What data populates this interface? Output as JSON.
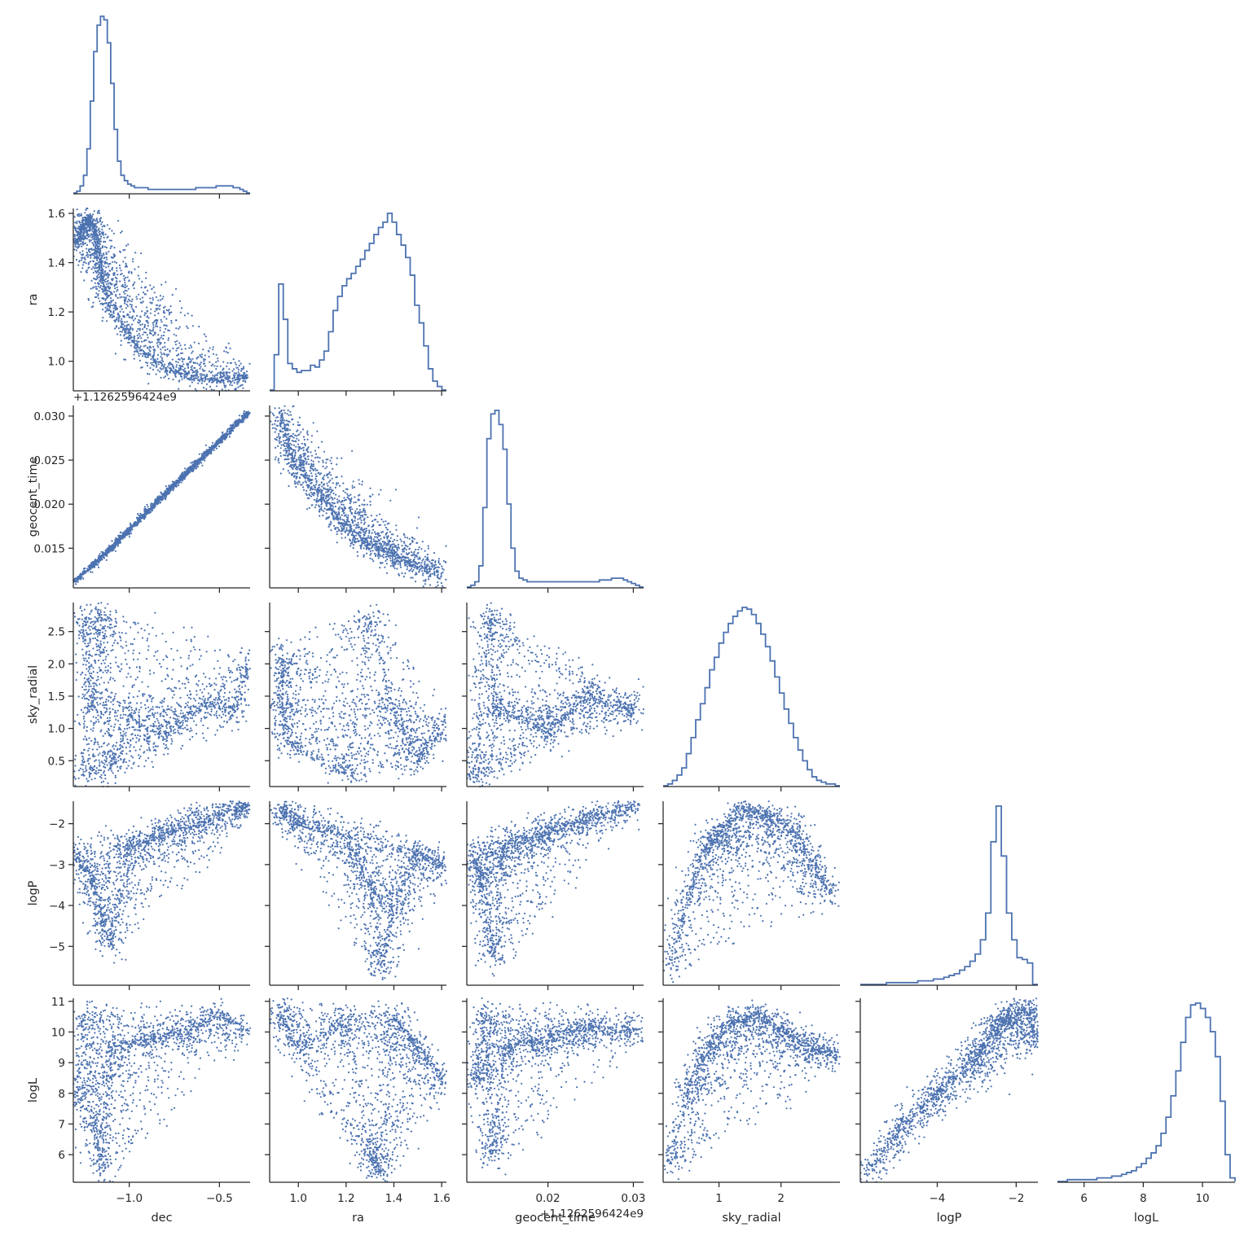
{
  "chart_data": {
    "type": "scatter",
    "kind": "corner pairplot (lower triangle scatter, diagonal step histograms)",
    "color": "#4c72b0",
    "variables": [
      "dec",
      "ra",
      "geocent_time",
      "sky_radial",
      "logP",
      "logL"
    ],
    "axes": {
      "dec": {
        "label": "dec",
        "range": [
          -1.31,
          -0.33
        ],
        "ticks": [
          -1.0,
          -0.5
        ],
        "tick_labels": [
          "−1.0",
          "−0.5"
        ]
      },
      "ra": {
        "label": "ra",
        "range": [
          0.88,
          1.62
        ],
        "ticks": [
          1.0,
          1.2,
          1.4,
          1.6
        ],
        "tick_labels": [
          "1.0",
          "1.2",
          "1.4",
          "1.6"
        ]
      },
      "geocent_time": {
        "label": "geocent_time",
        "offset_text": "+1.1262596424e9",
        "range": [
          0.0105,
          0.0312
        ],
        "ticks": [
          0.02,
          0.03
        ],
        "tick_labels": [
          "0.02",
          "0.03"
        ],
        "y_ticks": [
          0.015,
          0.02,
          0.025,
          0.03
        ],
        "y_tick_labels": [
          "0.015",
          "0.020",
          "0.025",
          "0.030"
        ]
      },
      "sky_radial": {
        "label": "sky_radial",
        "range": [
          0.1,
          2.95
        ],
        "ticks": [
          1,
          2
        ],
        "tick_labels": [
          "1",
          "2"
        ],
        "y_ticks": [
          0.5,
          1.0,
          1.5,
          2.0,
          2.5
        ],
        "y_tick_labels": [
          "0.5",
          "1.0",
          "1.5",
          "2.0",
          "2.5"
        ]
      },
      "logP": {
        "label": "logP",
        "range": [
          -5.95,
          -1.45
        ],
        "ticks": [
          -4,
          -2
        ],
        "tick_labels": [
          "−4",
          "−2"
        ],
        "y_ticks": [
          -5,
          -4,
          -3,
          -2
        ],
        "y_tick_labels": [
          "−5",
          "−4",
          "−3",
          "−2"
        ]
      },
      "logL": {
        "label": "logL",
        "range": [
          5.1,
          11.1
        ],
        "ticks": [
          6,
          8,
          10
        ],
        "tick_labels": [
          "6",
          "8",
          "10"
        ],
        "y_ticks": [
          6,
          7,
          8,
          9,
          10,
          11
        ],
        "y_tick_labels": [
          "6",
          "7",
          "8",
          "9",
          "10",
          "11"
        ]
      }
    },
    "ra_y_ticks": [
      1.0,
      1.2,
      1.4,
      1.6
    ],
    "ra_y_tick_labels": [
      "1.0",
      "1.2",
      "1.4",
      "1.6"
    ],
    "histograms": {
      "dec": {
        "edges": [
          -1.31,
          -0.33
        ],
        "counts": [
          0,
          1,
          4,
          10,
          25,
          52,
          80,
          95,
          100,
          98,
          85,
          62,
          36,
          18,
          10,
          7,
          5,
          4,
          3,
          3,
          3,
          3,
          2,
          2,
          2,
          2,
          2,
          2,
          2,
          2,
          2,
          2,
          2,
          2,
          2,
          2,
          3,
          3,
          3,
          3,
          3,
          3,
          4,
          4,
          4,
          4,
          4,
          3,
          3,
          2,
          1,
          0
        ]
      },
      "ra": {
        "edges": [
          0.88,
          1.62
        ],
        "counts": [
          0,
          20,
          60,
          40,
          15,
          12,
          10,
          11,
          11,
          14,
          13,
          17,
          22,
          33,
          45,
          53,
          59,
          63,
          66,
          70,
          74,
          79,
          83,
          88,
          92,
          95,
          100,
          95,
          88,
          82,
          75,
          65,
          48,
          38,
          25,
          12,
          5,
          2,
          0
        ]
      },
      "geocent_time": {
        "edges": [
          0.0105,
          0.0312
        ],
        "counts": [
          0,
          1,
          3,
          12,
          45,
          84,
          98,
          100,
          92,
          78,
          47,
          22,
          9,
          5,
          4,
          3,
          3,
          3,
          3,
          3,
          3,
          3,
          3,
          3,
          3,
          3,
          3,
          3,
          3,
          3,
          3,
          3,
          3,
          4,
          4,
          4,
          5,
          5,
          5,
          4,
          3,
          2,
          1,
          0
        ]
      },
      "sky_radial": {
        "edges": [
          0.1,
          2.95
        ],
        "counts": [
          0,
          1,
          3,
          6,
          10,
          18,
          27,
          37,
          46,
          55,
          65,
          72,
          80,
          86,
          91,
          95,
          98,
          100,
          99,
          96,
          91,
          85,
          78,
          70,
          61,
          52,
          43,
          35,
          27,
          20,
          14,
          9,
          5,
          3,
          2,
          1,
          1,
          0
        ]
      },
      "logP": {
        "edges": [
          -5.95,
          -1.45
        ],
        "counts": [
          0,
          0,
          0,
          0,
          0,
          1,
          1,
          1,
          1,
          1,
          1,
          2,
          2,
          2,
          3,
          3,
          4,
          5,
          6,
          8,
          10,
          13,
          17,
          25,
          40,
          80,
          100,
          72,
          40,
          25,
          15,
          14,
          12,
          0
        ]
      },
      "logL": {
        "edges": [
          5.1,
          11.1
        ],
        "counts": [
          0,
          0,
          1,
          1,
          1,
          1,
          1,
          1,
          2,
          2,
          2,
          3,
          3,
          4,
          5,
          6,
          8,
          10,
          13,
          16,
          20,
          27,
          36,
          48,
          62,
          78,
          92,
          99,
          100,
          97,
          92,
          84,
          70,
          45,
          15,
          2
        ]
      }
    },
    "series": [
      {
        "x": "dec",
        "y": "ra",
        "points": [
          [
            -1.3,
            1.48
          ],
          [
            -1.28,
            1.5
          ],
          [
            -1.26,
            1.54
          ],
          [
            -1.24,
            1.56
          ],
          [
            -1.22,
            1.58
          ],
          [
            -1.2,
            1.55
          ],
          [
            -1.18,
            1.48
          ],
          [
            -1.16,
            1.4
          ],
          [
            -1.14,
            1.3
          ],
          [
            -1.1,
            1.2
          ],
          [
            -1.0,
            1.1
          ],
          [
            -0.9,
            1.02
          ],
          [
            -0.8,
            0.97
          ],
          [
            -0.7,
            0.95
          ],
          [
            -0.6,
            0.93
          ],
          [
            -0.5,
            0.92
          ],
          [
            -0.4,
            0.93
          ],
          [
            -0.35,
            0.94
          ]
        ]
      },
      {
        "x": "dec",
        "y": "geocent_time",
        "points": [
          [
            -1.3,
            0.0113
          ],
          [
            -1.2,
            0.013
          ],
          [
            -1.1,
            0.015
          ],
          [
            -1.0,
            0.017
          ],
          [
            -0.9,
            0.0192
          ],
          [
            -0.8,
            0.0212
          ],
          [
            -0.7,
            0.0232
          ],
          [
            -0.6,
            0.0252
          ],
          [
            -0.5,
            0.0272
          ],
          [
            -0.4,
            0.0292
          ],
          [
            -0.34,
            0.0303
          ]
        ]
      },
      {
        "x": "ra",
        "y": "geocent_time",
        "points": [
          [
            0.93,
            0.0303
          ],
          [
            0.95,
            0.027
          ],
          [
            1.0,
            0.024
          ],
          [
            1.1,
            0.0205
          ],
          [
            1.2,
            0.0175
          ],
          [
            1.3,
            0.0155
          ],
          [
            1.4,
            0.014
          ],
          [
            1.5,
            0.013
          ],
          [
            1.6,
            0.0122
          ]
        ]
      },
      {
        "x": "dec",
        "y": "sky_radial",
        "points": [
          [
            -1.25,
            0.3
          ],
          [
            -1.25,
            2.7
          ],
          [
            -1.2,
            1.3
          ],
          [
            -1.15,
            2.8
          ],
          [
            -1.1,
            0.4
          ],
          [
            -1.0,
            1.2
          ],
          [
            -0.8,
            0.9
          ],
          [
            -0.6,
            1.4
          ],
          [
            -0.4,
            1.3
          ],
          [
            -0.35,
            2.0
          ]
        ]
      },
      {
        "x": "ra",
        "y": "sky_radial",
        "points": [
          [
            0.92,
            1.4
          ],
          [
            0.93,
            2.1
          ],
          [
            0.95,
            0.8
          ],
          [
            1.2,
            0.3
          ],
          [
            1.3,
            2.7
          ],
          [
            1.4,
            1.3
          ],
          [
            1.5,
            0.5
          ],
          [
            1.6,
            1.0
          ]
        ]
      },
      {
        "x": "geocent_time",
        "y": "sky_radial",
        "points": [
          [
            0.0115,
            0.3
          ],
          [
            0.013,
            2.7
          ],
          [
            0.014,
            1.3
          ],
          [
            0.02,
            1.0
          ],
          [
            0.025,
            1.5
          ],
          [
            0.03,
            1.3
          ]
        ]
      },
      {
        "x": "dec",
        "y": "logP",
        "points": [
          [
            -1.3,
            -2.8
          ],
          [
            -1.2,
            -3.4
          ],
          [
            -1.15,
            -4.3
          ],
          [
            -1.1,
            -5.0
          ],
          [
            -1.0,
            -2.6
          ],
          [
            -0.8,
            -2.2
          ],
          [
            -0.6,
            -1.95
          ],
          [
            -0.4,
            -1.65
          ],
          [
            -0.34,
            -1.58
          ]
        ]
      },
      {
        "x": "ra",
        "y": "logP",
        "points": [
          [
            0.92,
            -1.6
          ],
          [
            1.0,
            -2.0
          ],
          [
            1.2,
            -2.3
          ],
          [
            1.3,
            -3.5
          ],
          [
            1.35,
            -5.5
          ],
          [
            1.4,
            -4.0
          ],
          [
            1.5,
            -2.7
          ],
          [
            1.6,
            -3.0
          ]
        ]
      },
      {
        "x": "geocent_time",
        "y": "logP",
        "points": [
          [
            0.0115,
            -2.8
          ],
          [
            0.0125,
            -3.5
          ],
          [
            0.0135,
            -5.2
          ],
          [
            0.015,
            -2.6
          ],
          [
            0.02,
            -2.2
          ],
          [
            0.025,
            -1.85
          ],
          [
            0.03,
            -1.6
          ]
        ]
      },
      {
        "x": "sky_radial",
        "y": "logP",
        "points": [
          [
            0.2,
            -5.5
          ],
          [
            0.5,
            -3.8
          ],
          [
            0.8,
            -2.6
          ],
          [
            1.0,
            -2.2
          ],
          [
            1.4,
            -1.6
          ],
          [
            1.8,
            -1.8
          ],
          [
            2.2,
            -2.1
          ],
          [
            2.5,
            -3.0
          ],
          [
            2.8,
            -3.7
          ]
        ]
      },
      {
        "x": "dec",
        "y": "logL",
        "points": [
          [
            -1.3,
            8.0
          ],
          [
            -1.25,
            10.5
          ],
          [
            -1.2,
            7.0
          ],
          [
            -1.15,
            5.5
          ],
          [
            -1.1,
            9.5
          ],
          [
            -0.9,
            9.8
          ],
          [
            -0.7,
            10.0
          ],
          [
            -0.5,
            10.6
          ],
          [
            -0.35,
            10.0
          ]
        ]
      },
      {
        "x": "ra",
        "y": "logL",
        "points": [
          [
            0.92,
            10.6
          ],
          [
            1.0,
            9.5
          ],
          [
            1.2,
            10.3
          ],
          [
            1.3,
            6.0
          ],
          [
            1.35,
            5.4
          ],
          [
            1.4,
            10.5
          ],
          [
            1.5,
            9.5
          ],
          [
            1.6,
            8.5
          ]
        ]
      },
      {
        "x": "geocent_time",
        "y": "logL",
        "points": [
          [
            0.0115,
            8.5
          ],
          [
            0.0125,
            10.6
          ],
          [
            0.0135,
            6.0
          ],
          [
            0.015,
            9.5
          ],
          [
            0.02,
            9.8
          ],
          [
            0.025,
            10.2
          ],
          [
            0.03,
            10.0
          ]
        ]
      },
      {
        "x": "sky_radial",
        "y": "logL",
        "points": [
          [
            0.2,
            5.7
          ],
          [
            0.5,
            8.0
          ],
          [
            0.8,
            9.5
          ],
          [
            1.2,
            10.3
          ],
          [
            1.6,
            10.6
          ],
          [
            2.0,
            10.0
          ],
          [
            2.5,
            9.5
          ],
          [
            2.9,
            9.2
          ]
        ]
      },
      {
        "x": "logP",
        "y": "logL",
        "points": [
          [
            -5.7,
            5.5
          ],
          [
            -5.0,
            6.8
          ],
          [
            -4.0,
            8.0
          ],
          [
            -3.0,
            9.2
          ],
          [
            -2.5,
            10.2
          ],
          [
            -2.2,
            10.5
          ],
          [
            -1.6,
            10.8
          ],
          [
            -1.55,
            9.8
          ]
        ]
      }
    ]
  }
}
